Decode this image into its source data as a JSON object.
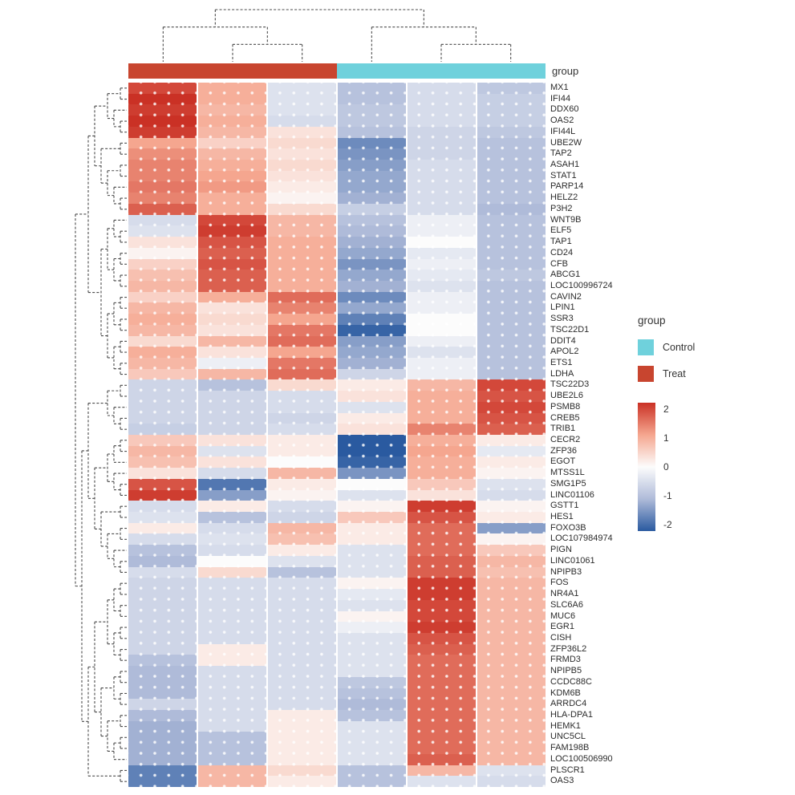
{
  "annotation": {
    "label": "group",
    "groups": [
      {
        "name": "Treat",
        "color": "#c8452f",
        "span": 3
      },
      {
        "name": "Control",
        "color": "#6fd1dc",
        "span": 3
      }
    ]
  },
  "legend": {
    "group_title": "group",
    "items": [
      {
        "label": "Control",
        "color": "#6fd1dc"
      },
      {
        "label": "Treat",
        "color": "#c8452f"
      }
    ],
    "scale_ticks": [
      "2",
      "1",
      "0",
      "-1",
      "-2"
    ]
  },
  "chart_data": {
    "type": "heatmap",
    "rows": [
      "MX1",
      "IFI44",
      "DDX60",
      "OAS2",
      "IFI44L",
      "UBE2W",
      "TAP2",
      "ASAH1",
      "STAT1",
      "PARP14",
      "HELZ2",
      "P3H2",
      "WNT9B",
      "ELF5",
      "TAP1",
      "CD24",
      "CFB",
      "ABCG1",
      "LOC100996724",
      "CAVIN2",
      "LPIN1",
      "SSR3",
      "TSC22D1",
      "DDIT4",
      "APOL2",
      "ETS1",
      "LDHA",
      "TSC22D3",
      "UBE2L6",
      "PSMB8",
      "CREB5",
      "TRIB1",
      "CECR2",
      "ZFP36",
      "EGOT",
      "MTSS1L",
      "SMG1P5",
      "LINC01106",
      "GSTT1",
      "HES1",
      "FOXO3B",
      "LOC107984974",
      "PIGN",
      "LINC01061",
      "NPIPB3",
      "FOS",
      "NR4A1",
      "SLC6A6",
      "MUC6",
      "EGR1",
      "CISH",
      "ZFP36L2",
      "FRMD3",
      "NPIPB5",
      "CCDC88C",
      "KDM6B",
      "ARRDC4",
      "HLA-DPA1",
      "HEMK1",
      "UNC5CL",
      "FAM198B",
      "LOC100506990",
      "PLSCR1",
      "OAS3"
    ],
    "column_groups": [
      "Treat",
      "Treat",
      "Treat",
      "Control",
      "Control",
      "Control"
    ],
    "zlim": [
      -2,
      2
    ],
    "legend_position": "right",
    "color_stops": [
      [
        -2,
        "#2a5aa0"
      ],
      [
        -1,
        "#afbbd9"
      ],
      [
        0,
        "#fcfcfc"
      ],
      [
        1,
        "#f5a68f"
      ],
      [
        2,
        "#ca3125"
      ]
    ],
    "values": [
      [
        1.8,
        0.9,
        -0.4,
        -0.9,
        -0.5,
        -0.8
      ],
      [
        2.0,
        0.9,
        -0.4,
        -0.9,
        -0.5,
        -0.7
      ],
      [
        1.9,
        0.8,
        -0.4,
        -0.8,
        -0.5,
        -0.7
      ],
      [
        2.0,
        0.9,
        -0.5,
        -0.8,
        -0.5,
        -0.7
      ],
      [
        1.9,
        0.8,
        0.3,
        -0.9,
        -0.6,
        -0.8
      ],
      [
        1.0,
        0.5,
        0.4,
        -1.5,
        -0.6,
        -0.9
      ],
      [
        1.2,
        0.8,
        0.3,
        -1.4,
        -0.6,
        -0.9
      ],
      [
        1.3,
        0.9,
        0.4,
        -1.3,
        -0.5,
        -0.9
      ],
      [
        1.3,
        1.0,
        0.3,
        -1.2,
        -0.5,
        -0.9
      ],
      [
        1.4,
        1.1,
        0.2,
        -1.2,
        -0.5,
        -0.9
      ],
      [
        1.3,
        0.9,
        0.1,
        -1.1,
        -0.5,
        -0.9
      ],
      [
        1.6,
        0.9,
        0.4,
        -0.7,
        -0.5,
        -1.0
      ],
      [
        -0.5,
        1.8,
        0.8,
        -0.9,
        -0.2,
        -0.9
      ],
      [
        -0.4,
        1.9,
        0.8,
        -1.0,
        -0.2,
        -0.9
      ],
      [
        0.3,
        1.7,
        0.9,
        -1.1,
        0.0,
        -0.9
      ],
      [
        0.1,
        1.6,
        0.9,
        -1.2,
        -0.3,
        -0.9
      ],
      [
        0.5,
        1.7,
        0.9,
        -1.4,
        -0.2,
        -0.9
      ],
      [
        0.7,
        1.6,
        0.9,
        -1.2,
        -0.3,
        -0.8
      ],
      [
        0.8,
        1.6,
        0.9,
        -1.1,
        -0.4,
        -0.9
      ],
      [
        0.5,
        0.9,
        1.5,
        -1.5,
        -0.2,
        -0.9
      ],
      [
        0.8,
        0.3,
        1.3,
        -1.2,
        -0.2,
        -0.9
      ],
      [
        0.9,
        0.4,
        1.0,
        -1.6,
        0.0,
        -0.9
      ],
      [
        0.8,
        0.3,
        1.4,
        -1.9,
        0.0,
        -0.9
      ],
      [
        0.4,
        0.8,
        1.5,
        -1.3,
        -0.2,
        -0.9
      ],
      [
        0.9,
        0.3,
        1.0,
        -1.2,
        -0.4,
        -0.9
      ],
      [
        0.8,
        -0.2,
        1.4,
        -1.1,
        -0.2,
        -0.9
      ],
      [
        0.6,
        0.8,
        1.5,
        -0.6,
        -0.2,
        -0.9
      ],
      [
        -0.6,
        -0.9,
        0.4,
        0.2,
        0.8,
        1.8
      ],
      [
        -0.6,
        -0.6,
        -0.5,
        0.3,
        0.9,
        1.7
      ],
      [
        -0.6,
        -0.6,
        -0.5,
        -0.4,
        0.9,
        1.8
      ],
      [
        -0.6,
        -0.6,
        -0.6,
        0.2,
        0.9,
        1.7
      ],
      [
        -0.7,
        -0.6,
        -0.5,
        0.3,
        1.3,
        1.6
      ],
      [
        0.6,
        0.3,
        0.2,
        -2.0,
        0.9,
        0.2
      ],
      [
        0.8,
        -0.4,
        0.2,
        -2.0,
        1.0,
        -0.3
      ],
      [
        0.7,
        0.3,
        0.0,
        -1.9,
        0.9,
        0.2
      ],
      [
        0.3,
        -0.5,
        0.8,
        -1.4,
        0.9,
        0.1
      ],
      [
        1.7,
        -1.7,
        0.2,
        0.0,
        0.6,
        -0.4
      ],
      [
        1.9,
        -1.3,
        0.1,
        -0.4,
        0.3,
        -0.5
      ],
      [
        -0.5,
        0.2,
        -0.5,
        0.1,
        1.9,
        0.1
      ],
      [
        -0.4,
        -0.9,
        -0.6,
        0.6,
        1.7,
        0.2
      ],
      [
        0.2,
        -0.5,
        0.8,
        0.2,
        1.5,
        -1.3
      ],
      [
        -0.5,
        -0.4,
        0.7,
        0.2,
        1.5,
        0.1
      ],
      [
        -0.9,
        -0.5,
        0.2,
        -0.4,
        1.5,
        0.6
      ],
      [
        -1.0,
        0.0,
        -0.4,
        -0.4,
        1.6,
        0.8
      ],
      [
        -0.5,
        0.4,
        -0.9,
        -0.4,
        1.6,
        0.7
      ],
      [
        -0.6,
        -0.5,
        -0.5,
        0.1,
        1.9,
        0.8
      ],
      [
        -0.6,
        -0.5,
        -0.5,
        -0.3,
        1.9,
        0.8
      ],
      [
        -0.6,
        -0.5,
        -0.5,
        -0.4,
        1.8,
        0.8
      ],
      [
        -0.6,
        -0.5,
        -0.5,
        0.1,
        1.8,
        0.8
      ],
      [
        -0.6,
        -0.5,
        -0.5,
        -0.2,
        1.9,
        0.8
      ],
      [
        -0.6,
        -0.5,
        -0.5,
        -0.4,
        1.7,
        0.8
      ],
      [
        -0.6,
        0.2,
        -0.5,
        -0.4,
        1.6,
        0.8
      ],
      [
        -0.9,
        0.2,
        -0.5,
        -0.4,
        1.5,
        0.8
      ],
      [
        -1.0,
        -0.5,
        -0.5,
        -0.4,
        1.5,
        0.8
      ],
      [
        -1.0,
        -0.5,
        -0.5,
        -0.8,
        1.5,
        0.8
      ],
      [
        -1.0,
        -0.5,
        -0.5,
        -0.9,
        1.5,
        0.8
      ],
      [
        -0.6,
        -0.5,
        -0.5,
        -1.0,
        1.5,
        0.8
      ],
      [
        -1.0,
        -0.5,
        0.2,
        -0.9,
        1.5,
        0.8
      ],
      [
        -1.1,
        -0.5,
        0.2,
        -0.4,
        1.5,
        0.8
      ],
      [
        -1.1,
        -0.9,
        0.2,
        -0.4,
        1.5,
        0.8
      ],
      [
        -1.1,
        -0.9,
        0.2,
        -0.4,
        1.5,
        0.8
      ],
      [
        -1.1,
        -0.9,
        0.2,
        -0.4,
        1.6,
        0.8
      ],
      [
        -1.6,
        0.8,
        0.4,
        -0.9,
        0.8,
        -0.4
      ],
      [
        -1.6,
        0.8,
        0.2,
        -0.9,
        -0.4,
        -0.5
      ]
    ]
  },
  "trees": {
    "col": [
      [
        0,
        [
          1,
          2
        ]
      ],
      [
        3,
        [
          4,
          5
        ]
      ]
    ],
    "row": [
      [
        [
          [
            [
              0,
              1
            ],
            [
              2,
              [
                3,
                4
              ]
            ]
          ],
          [
            [
              5,
              6
            ],
            [
              [
                7,
                8
              ],
              [
                9,
                [
                  10,
                  11
                ]
              ]
            ]
          ]
        ],
        [
          [
            [
              12,
              [
                13,
                14
              ]
            ],
            [
              [
                15,
                16
              ],
              [
                17,
                18
              ]
            ]
          ],
          [
            [
              [
                19,
                20
              ],
              [
                21,
                22
              ]
            ],
            [
              [
                23,
                24
              ],
              [
                25,
                26
              ]
            ]
          ]
        ]
      ],
      [
        [
          [
            [
              27,
              28
            ],
            [
              29,
              [
                30,
                31
              ]
            ]
          ],
          [
            [
              [
                [
                  32,
                  33
                ],
                34
              ],
              [
                35,
                [
                  36,
                  37
                ]
              ]
            ],
            [
              [
                38,
                39
              ],
              [
                [
                  40,
                  41
                ],
                [
                  42,
                  [
                    43,
                    44
                  ]
                ]
              ]
            ]
          ]
        ],
        [
          [
            [
              [
                [
                  45,
                  46
                ],
                [
                  47,
                  48
                ]
              ],
              [
                [
                  49,
                  50
                ],
                [
                  51,
                  52
                ]
              ]
            ],
            [
              [
                [
                  53,
                  54
                ],
                [
                  55,
                  56
                ]
              ],
              [
                [
                  57,
                  58
                ],
                [
                  [
                    59,
                    60
                  ],
                  61
                ]
              ]
            ]
          ],
          [
            62,
            63
          ]
        ]
      ]
    ]
  },
  "style": {
    "dendro_color": "#4a4a4a"
  }
}
